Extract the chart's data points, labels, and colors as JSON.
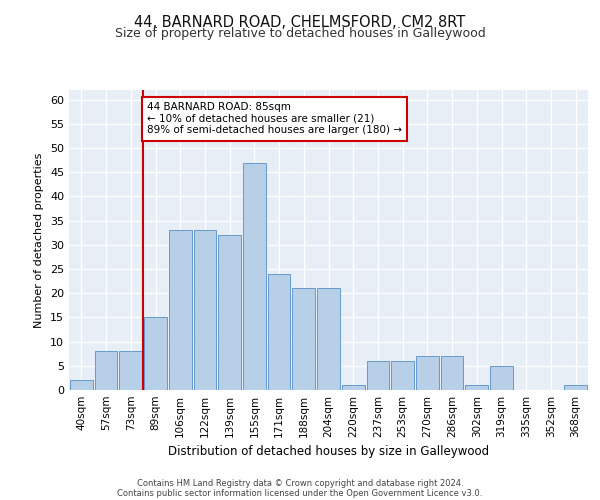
{
  "title_line1": "44, BARNARD ROAD, CHELMSFORD, CM2 8RT",
  "title_line2": "Size of property relative to detached houses in Galleywood",
  "xlabel": "Distribution of detached houses by size in Galleywood",
  "ylabel": "Number of detached properties",
  "categories": [
    "40sqm",
    "57sqm",
    "73sqm",
    "89sqm",
    "106sqm",
    "122sqm",
    "139sqm",
    "155sqm",
    "171sqm",
    "188sqm",
    "204sqm",
    "220sqm",
    "237sqm",
    "253sqm",
    "270sqm",
    "286sqm",
    "302sqm",
    "319sqm",
    "335sqm",
    "352sqm",
    "368sqm"
  ],
  "values": [
    2,
    8,
    8,
    15,
    33,
    33,
    32,
    47,
    24,
    21,
    21,
    1,
    6,
    6,
    7,
    7,
    1,
    5,
    0,
    0,
    1
  ],
  "bar_color": "#b8cfe8",
  "bar_edge_color": "#6699cc",
  "property_line_color": "#cc0000",
  "annotation_text": "44 BARNARD ROAD: 85sqm\n← 10% of detached houses are smaller (21)\n89% of semi-detached houses are larger (180) →",
  "annotation_box_color": "#cc0000",
  "ylim": [
    0,
    62
  ],
  "yticks": [
    0,
    5,
    10,
    15,
    20,
    25,
    30,
    35,
    40,
    45,
    50,
    55,
    60
  ],
  "footer_line1": "Contains HM Land Registry data © Crown copyright and database right 2024.",
  "footer_line2": "Contains public sector information licensed under the Open Government Licence v3.0.",
  "plot_bg_color": "#e8eef6"
}
